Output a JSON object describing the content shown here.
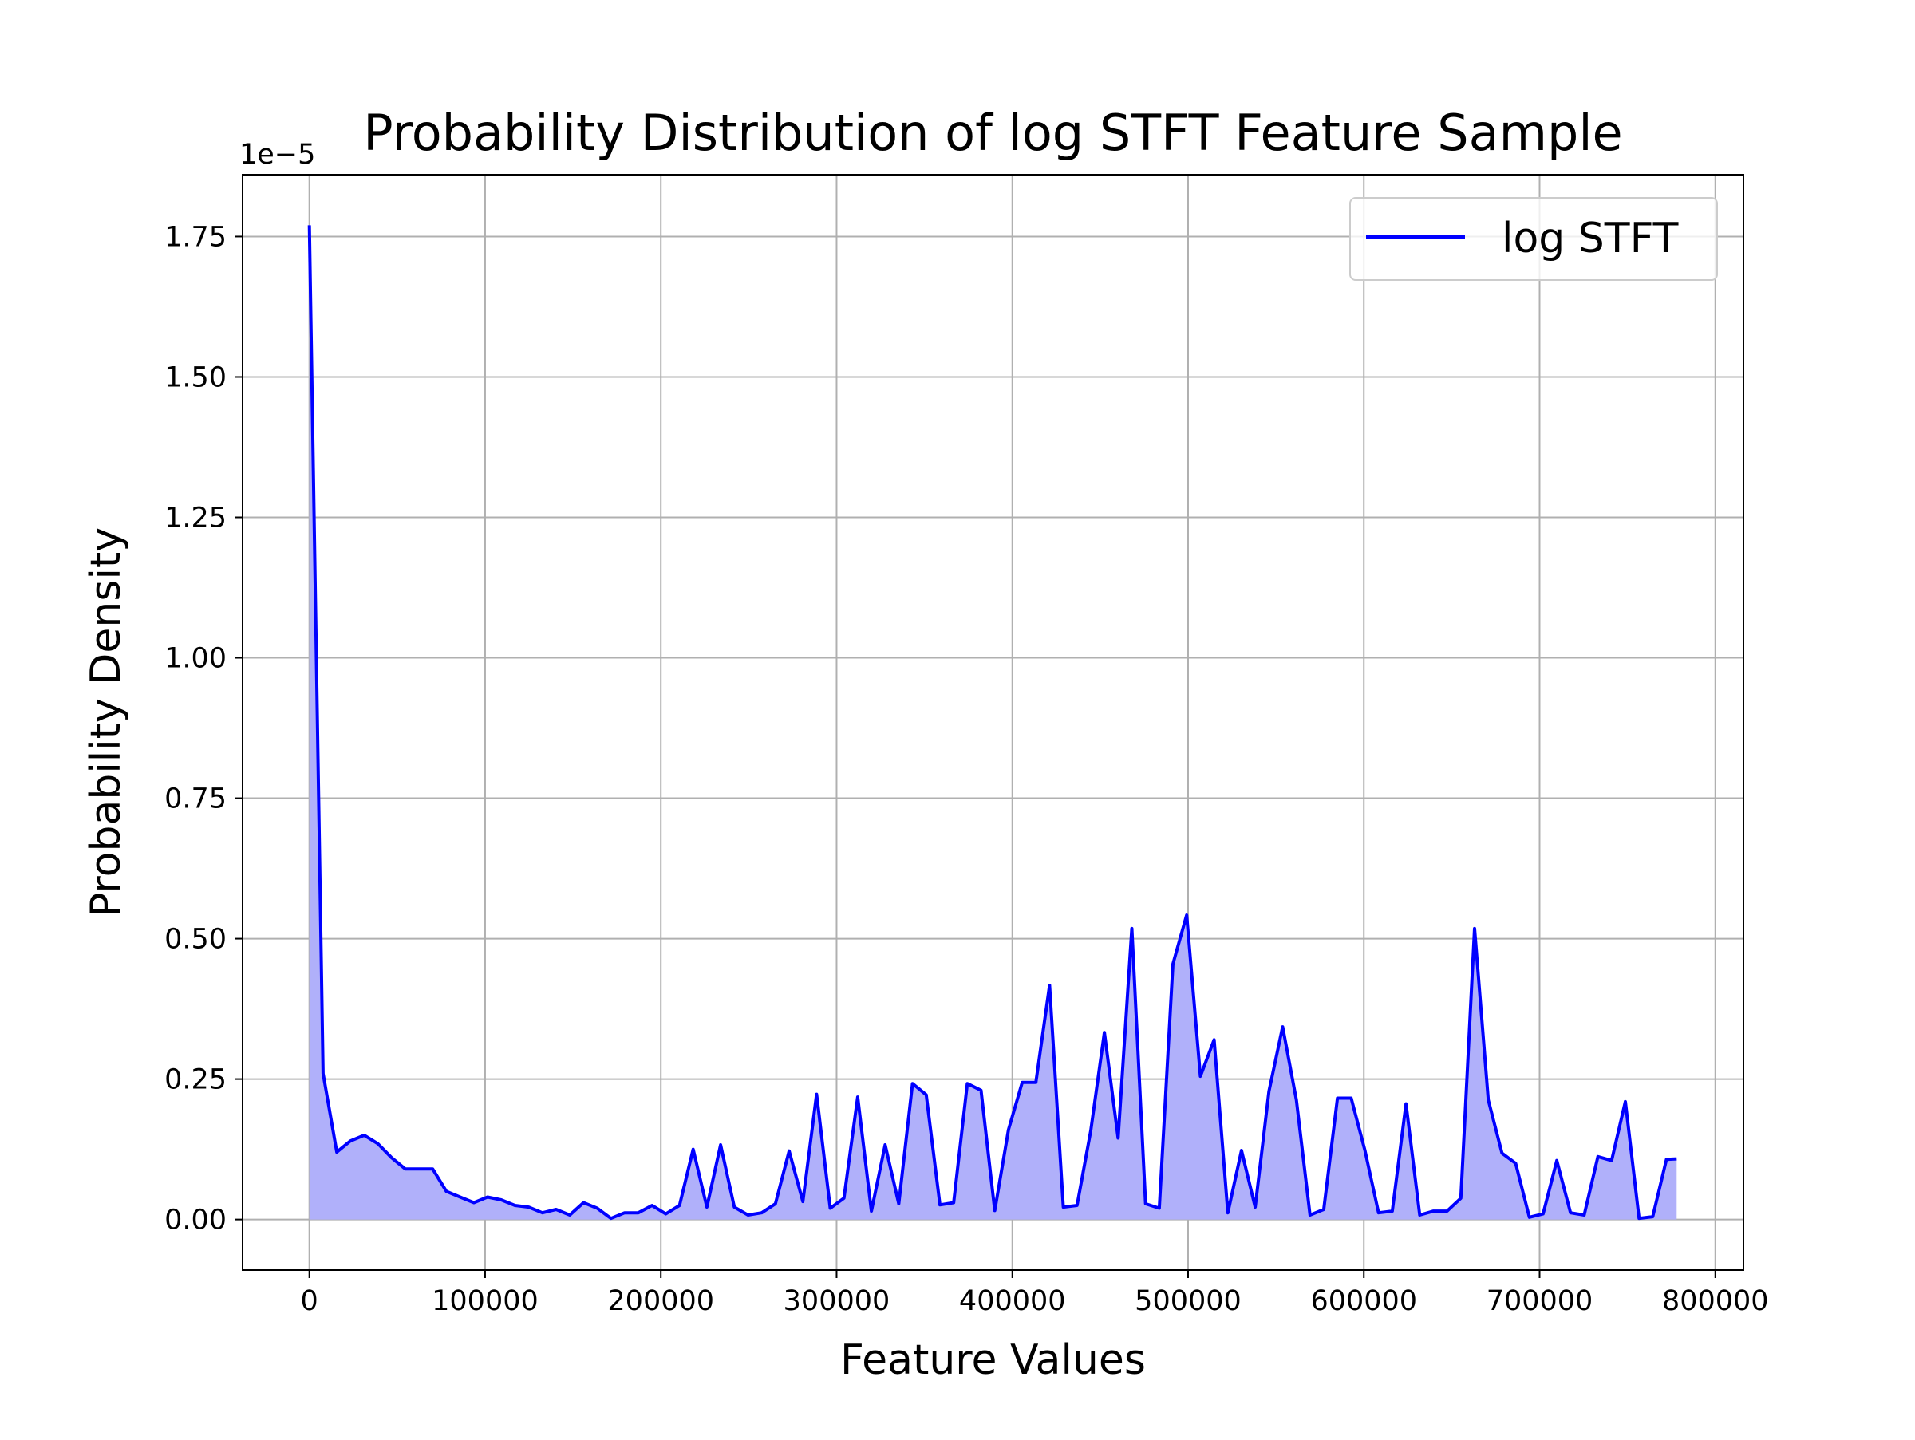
{
  "chart_data": {
    "type": "area",
    "title": "Probability Distribution of log STFT Feature Sample",
    "xlabel": "Feature Values",
    "ylabel": "Probability Density",
    "y_offset_label": "1e−5",
    "xlim": [
      -38000,
      816000
    ],
    "ylim": [
      -0.09,
      1.86
    ],
    "y_scale_exponent": -5,
    "grid": true,
    "legend_position": "top-right",
    "xticks": [
      0,
      100000,
      200000,
      300000,
      400000,
      500000,
      600000,
      700000,
      800000
    ],
    "xtick_labels": [
      "0",
      "100000",
      "200000",
      "300000",
      "400000",
      "500000",
      "600000",
      "700000",
      "800000"
    ],
    "yticks": [
      0.0,
      0.25,
      0.5,
      0.75,
      1.0,
      1.25,
      1.5,
      1.75
    ],
    "ytick_labels": [
      "0.00",
      "0.25",
      "0.50",
      "0.75",
      "1.00",
      "1.25",
      "1.50",
      "1.75"
    ],
    "colors": {
      "line": "#0000ff",
      "fill": "#b0b0fa",
      "grid": "#b0b0b0",
      "frame": "#000000"
    },
    "series": [
      {
        "name": "log STFT",
        "x": [
          0,
          7800,
          15600,
          23400,
          31200,
          39000,
          46800,
          54600,
          62400,
          70200,
          78000,
          85800,
          93600,
          101400,
          109200,
          117000,
          124800,
          132600,
          140400,
          148200,
          156000,
          163800,
          171600,
          179400,
          187200,
          195000,
          202800,
          210600,
          218400,
          226200,
          234000,
          241800,
          249600,
          257400,
          265200,
          273000,
          280800,
          288600,
          296400,
          304200,
          312000,
          319800,
          327600,
          335400,
          343200,
          351000,
          358800,
          366600,
          374400,
          382200,
          390000,
          397800,
          405600,
          413400,
          421200,
          429000,
          436800,
          444600,
          452400,
          460200,
          468000,
          475800,
          483600,
          491400,
          499200,
          507000,
          514800,
          522600,
          530400,
          538200,
          546000,
          553800,
          561600,
          569400,
          577200,
          585000,
          592800,
          600600,
          608400,
          616200,
          624000,
          631800,
          639600,
          647400,
          655200,
          663000,
          670800,
          678600,
          686400,
          694200,
          702000,
          709800,
          717600,
          725400,
          733200,
          741000,
          748800,
          756600,
          764400,
          772200,
          778000
        ],
        "y": [
          1.77,
          0.26,
          0.12,
          0.14,
          0.15,
          0.135,
          0.11,
          0.09,
          0.09,
          0.09,
          0.05,
          0.04,
          0.03,
          0.04,
          0.035,
          0.025,
          0.022,
          0.012,
          0.018,
          0.008,
          0.03,
          0.02,
          0.002,
          0.012,
          0.012,
          0.025,
          0.01,
          0.025,
          0.125,
          0.022,
          0.133,
          0.022,
          0.008,
          0.012,
          0.028,
          0.122,
          0.032,
          0.223,
          0.02,
          0.038,
          0.218,
          0.015,
          0.133,
          0.028,
          0.242,
          0.222,
          0.026,
          0.03,
          0.242,
          0.23,
          0.016,
          0.16,
          0.244,
          0.244,
          0.417,
          0.022,
          0.025,
          0.158,
          0.333,
          0.145,
          0.518,
          0.028,
          0.02,
          0.455,
          0.542,
          0.255,
          0.32,
          0.012,
          0.123,
          0.022,
          0.228,
          0.343,
          0.213,
          0.008,
          0.018,
          0.216,
          0.216,
          0.123,
          0.012,
          0.015,
          0.206,
          0.008,
          0.015,
          0.015,
          0.038,
          0.518,
          0.213,
          0.118,
          0.1,
          0.004,
          0.01,
          0.105,
          0.012,
          0.008,
          0.112,
          0.105,
          0.21,
          0.002,
          0.005,
          0.107,
          0.108
        ]
      }
    ]
  }
}
